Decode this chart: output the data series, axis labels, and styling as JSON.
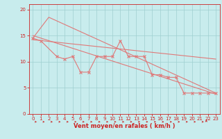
{
  "bg_color": "#c8eced",
  "line_color": "#e07878",
  "grid_color": "#9fcfcf",
  "axis_color": "#cc2222",
  "xlabel": "Vent moyen/en rafales ( km/h )",
  "xlim": [
    -0.5,
    23.5
  ],
  "ylim": [
    0,
    21
  ],
  "yticks": [
    0,
    5,
    10,
    15,
    20
  ],
  "xticks": [
    0,
    1,
    2,
    3,
    4,
    5,
    6,
    7,
    8,
    9,
    10,
    11,
    12,
    13,
    14,
    15,
    16,
    17,
    18,
    19,
    20,
    21,
    22,
    23
  ],
  "data_x": [
    0,
    1,
    3,
    4,
    5,
    6,
    7,
    8,
    9,
    10,
    11,
    12,
    13,
    14,
    15,
    16,
    17,
    18,
    19,
    20,
    21,
    22,
    23
  ],
  "data_y": [
    14.5,
    14.0,
    11.0,
    10.5,
    11.0,
    8.0,
    8.0,
    11.0,
    11.0,
    11.0,
    14.0,
    11.0,
    11.0,
    11.0,
    7.5,
    7.5,
    7.0,
    7.0,
    4.0,
    4.0,
    4.0,
    4.0,
    4.0
  ],
  "trend1_x": [
    0,
    23
  ],
  "trend1_y": [
    15.0,
    3.8
  ],
  "trend2_x": [
    0,
    23
  ],
  "trend2_y": [
    14.2,
    10.5
  ],
  "trend3_x": [
    0,
    2,
    23
  ],
  "trend3_y": [
    14.5,
    18.5,
    4.0
  ],
  "marker_size": 2.5,
  "lw": 0.8,
  "tick_fontsize": 5.0,
  "xlabel_fontsize": 6.0
}
